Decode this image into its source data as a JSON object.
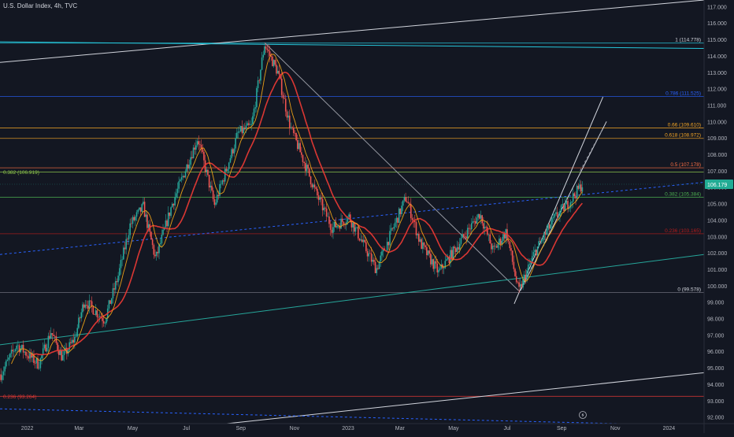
{
  "header": {
    "symbol_title": "U.S. Dollar Index, 4h, TVC"
  },
  "colors": {
    "background": "#131722",
    "grid": "#1e222d",
    "axis_text": "#b2b5be",
    "up": "#26a69a",
    "down": "#ef5350",
    "ma_slow": "#e53935",
    "ma_fast": "#f2a516",
    "price_badge": "#22ab94"
  },
  "chart_data": {
    "type": "candlestick",
    "title": "U.S. Dollar Index, 4h, TVC",
    "xlabel": "",
    "ylabel": "",
    "x_ticks": [
      "2022",
      "Mar",
      "May",
      "Jul",
      "Sep",
      "Nov",
      "2023",
      "Mar",
      "May",
      "Jul",
      "Sep",
      "Nov",
      "2024"
    ],
    "x_tick_dates": [
      "2022-01-01",
      "2022-03-01",
      "2022-05-01",
      "2022-07-01",
      "2022-09-01",
      "2022-11-01",
      "2023-01-01",
      "2023-03-01",
      "2023-05-01",
      "2023-07-01",
      "2023-09-01",
      "2023-11-01",
      "2024-01-01"
    ],
    "y_ticks": [
      92,
      93,
      94,
      95,
      96,
      97,
      98,
      99,
      100,
      101,
      102,
      103,
      104,
      105,
      106,
      107,
      108,
      109,
      110,
      111,
      112,
      113,
      114,
      115,
      116,
      117
    ],
    "ylim": [
      91.6,
      117.4
    ],
    "xlim": [
      "2021-12-01",
      "2024-02-10"
    ],
    "grid": false,
    "last_price": "106.179",
    "price_path": [
      [
        "2021-12-02",
        94.6
      ],
      [
        "2021-12-20",
        96.4
      ],
      [
        "2022-01-14",
        95.2
      ],
      [
        "2022-01-28",
        97.2
      ],
      [
        "2022-02-10",
        95.6
      ],
      [
        "2022-02-24",
        96.8
      ],
      [
        "2022-03-07",
        99.1
      ],
      [
        "2022-03-30",
        97.9
      ],
      [
        "2022-04-14",
        100.5
      ],
      [
        "2022-04-28",
        103.7
      ],
      [
        "2022-05-13",
        104.8
      ],
      [
        "2022-05-27",
        101.6
      ],
      [
        "2022-06-15",
        105.0
      ],
      [
        "2022-07-14",
        109.0
      ],
      [
        "2022-08-02",
        104.9
      ],
      [
        "2022-08-29",
        109.3
      ],
      [
        "2022-09-13",
        109.7
      ],
      [
        "2022-09-28",
        114.7
      ],
      [
        "2022-10-13",
        113.0
      ],
      [
        "2022-10-27",
        109.7
      ],
      [
        "2022-11-10",
        107.8
      ],
      [
        "2022-11-25",
        105.7
      ],
      [
        "2022-12-14",
        103.5
      ],
      [
        "2023-01-02",
        104.2
      ],
      [
        "2023-02-02",
        101.0
      ],
      [
        "2023-03-08",
        105.4
      ],
      [
        "2023-03-24",
        102.6
      ],
      [
        "2023-04-14",
        100.8
      ],
      [
        "2023-05-31",
        104.4
      ],
      [
        "2023-06-15",
        102.1
      ],
      [
        "2023-06-30",
        103.3
      ],
      [
        "2023-07-14",
        99.6
      ],
      [
        "2023-08-01",
        102.0
      ],
      [
        "2023-08-25",
        104.2
      ],
      [
        "2023-09-08",
        105.0
      ],
      [
        "2023-09-25",
        106.2
      ]
    ],
    "moving_averages": [
      {
        "name": "",
        "color": "#e53935",
        "role": "slow"
      },
      {
        "name": "",
        "color": "#f2a516",
        "role": "fast"
      }
    ],
    "horizontal_levels": [
      {
        "price": 114.778,
        "label": "1 (114.778)",
        "color": "#26c6da",
        "text_color": "#d1d4dc"
      },
      {
        "price": 111.525,
        "label": "0.786 (111.525)",
        "color": "#2962ff",
        "text_color": "#2962ff"
      },
      {
        "price": 109.61,
        "label": "0.66 (109.610)",
        "color": "#f9a825",
        "text_color": "#f9a825"
      },
      {
        "price": 108.972,
        "label": "0.618 (108.972)",
        "color": "#f9a825",
        "text_color": "#f9a825"
      },
      {
        "price": 107.178,
        "label": "0.5 (107.178)",
        "color": "#ff7043",
        "text_color": "#ff7043"
      },
      {
        "price": 105.384,
        "label": "0.382 (105.384)",
        "color": "#4caf50",
        "text_color": "#4caf50"
      },
      {
        "price": 103.165,
        "label": "0.236 (103.165)",
        "color": "#b71c1c",
        "text_color": "#b71c1c"
      },
      {
        "price": 99.578,
        "label": "0 (99.578)",
        "color": "#787b86",
        "text_color": "#d1d4dc"
      }
    ],
    "left_levels": [
      {
        "price": 106.919,
        "label": "0.382 (106.919)",
        "color": "#8bc34a",
        "text_color": "#8bc34a"
      },
      {
        "price": 93.264,
        "label": "0.236 (93.264)",
        "color": "#e53935",
        "text_color": "#e53935"
      }
    ],
    "trend_lines": [
      {
        "kind": "solid",
        "color": "#d1d4dc",
        "from": [
          "2021-12-01",
          113.6
        ],
        "to": [
          "2024-02-10",
          117.4
        ]
      },
      {
        "kind": "solid",
        "color": "#26c6da",
        "from": [
          "2021-12-01",
          114.85
        ],
        "to": [
          "2024-02-10",
          114.45
        ]
      },
      {
        "kind": "solid",
        "color": "#9598a1",
        "from": [
          "2022-09-28",
          114.8
        ],
        "to": [
          "2023-07-14",
          99.7
        ]
      },
      {
        "kind": "dashed",
        "color": "#2962ff",
        "from": [
          "2021-12-01",
          101.9
        ],
        "to": [
          "2024-02-10",
          106.3
        ]
      },
      {
        "kind": "solid",
        "color": "#26a69a",
        "from": [
          "2021-12-01",
          96.4
        ],
        "to": [
          "2024-02-10",
          101.9
        ]
      },
      {
        "kind": "solid",
        "color": "#d1d4dc",
        "from": [
          "2022-08-16",
          91.6
        ],
        "to": [
          "2024-02-10",
          94.7
        ]
      },
      {
        "kind": "dashed",
        "color": "#2962ff",
        "from": [
          "2021-12-01",
          92.5
        ],
        "to": [
          "2023-11-05",
          91.6
        ]
      },
      {
        "kind": "solid",
        "color": "#d1d4dc",
        "from": [
          "2023-07-09",
          98.9
        ],
        "to": [
          "2023-10-18",
          111.5
        ]
      },
      {
        "kind": "solid",
        "color": "#d1d4dc",
        "from": [
          "2023-07-16",
          99.7
        ],
        "to": [
          "2023-10-22",
          110.0
        ]
      },
      {
        "kind": "dashed",
        "color": "#787b86",
        "from": [
          "2023-09-22",
          107.0
        ],
        "to": [
          "2023-10-16",
          109.4
        ]
      }
    ]
  }
}
